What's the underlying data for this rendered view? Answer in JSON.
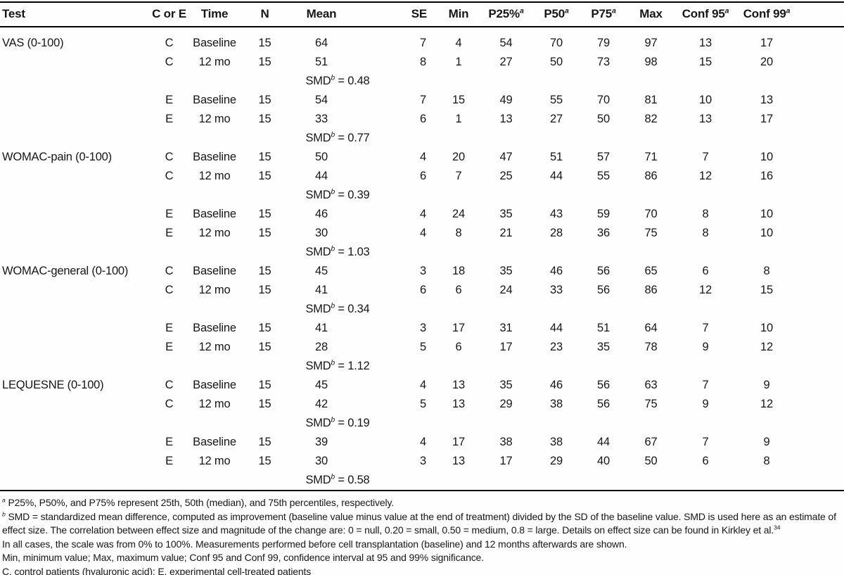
{
  "table": {
    "columns": [
      {
        "key": "test",
        "label": "Test"
      },
      {
        "key": "c_or_e",
        "label": "C or E"
      },
      {
        "key": "time",
        "label": "Time"
      },
      {
        "key": "n",
        "label": "N"
      },
      {
        "key": "mean",
        "label": "Mean"
      },
      {
        "key": "se",
        "label": "SE"
      },
      {
        "key": "min",
        "label": "Min"
      },
      {
        "key": "p25",
        "label": "P25%",
        "sup": "a"
      },
      {
        "key": "p50",
        "label": "P50",
        "sup": "a"
      },
      {
        "key": "p75",
        "label": "P75",
        "sup": "a"
      },
      {
        "key": "max",
        "label": "Max"
      },
      {
        "key": "conf95",
        "label": "Conf 95",
        "sup": "a"
      },
      {
        "key": "conf99",
        "label": "Conf 99",
        "sup": "a"
      }
    ],
    "smd_label": "SMD",
    "smd_sup": "b",
    "smd_equals": " = ",
    "groups": [
      {
        "test": "VAS (0-100)",
        "blocks": [
          {
            "rows": [
              {
                "arm": "C",
                "time": "Baseline",
                "values": [
                  "15",
                  "64",
                  "7",
                  "4",
                  "54",
                  "70",
                  "79",
                  "97",
                  "13",
                  "17"
                ]
              },
              {
                "arm": "C",
                "time": "12 mo",
                "values": [
                  "15",
                  "51",
                  "8",
                  "1",
                  "27",
                  "50",
                  "73",
                  "98",
                  "15",
                  "20"
                ]
              }
            ],
            "smd": "0.48"
          },
          {
            "rows": [
              {
                "arm": "E",
                "time": "Baseline",
                "values": [
                  "15",
                  "54",
                  "7",
                  "15",
                  "49",
                  "55",
                  "70",
                  "81",
                  "10",
                  "13"
                ]
              },
              {
                "arm": "E",
                "time": "12 mo",
                "values": [
                  "15",
                  "33",
                  "6",
                  "1",
                  "13",
                  "27",
                  "50",
                  "82",
                  "13",
                  "17"
                ]
              }
            ],
            "smd": "0.77"
          }
        ]
      },
      {
        "test": "WOMAC-pain (0-100)",
        "blocks": [
          {
            "rows": [
              {
                "arm": "C",
                "time": "Baseline",
                "values": [
                  "15",
                  "50",
                  "4",
                  "20",
                  "47",
                  "51",
                  "57",
                  "71",
                  "7",
                  "10"
                ]
              },
              {
                "arm": "C",
                "time": "12 mo",
                "values": [
                  "15",
                  "44",
                  "6",
                  "7",
                  "25",
                  "44",
                  "55",
                  "86",
                  "12",
                  "16"
                ]
              }
            ],
            "smd": "0.39"
          },
          {
            "rows": [
              {
                "arm": "E",
                "time": "Baseline",
                "values": [
                  "15",
                  "46",
                  "4",
                  "24",
                  "35",
                  "43",
                  "59",
                  "70",
                  "8",
                  "10"
                ]
              },
              {
                "arm": "E",
                "time": "12 mo",
                "values": [
                  "15",
                  "30",
                  "4",
                  "8",
                  "21",
                  "28",
                  "36",
                  "75",
                  "8",
                  "10"
                ]
              }
            ],
            "smd": "1.03"
          }
        ]
      },
      {
        "test": "WOMAC-general (0-100)",
        "blocks": [
          {
            "rows": [
              {
                "arm": "C",
                "time": "Baseline",
                "values": [
                  "15",
                  "45",
                  "3",
                  "18",
                  "35",
                  "46",
                  "56",
                  "65",
                  "6",
                  "8"
                ]
              },
              {
                "arm": "C",
                "time": "12 mo",
                "values": [
                  "15",
                  "41",
                  "6",
                  "6",
                  "24",
                  "33",
                  "56",
                  "86",
                  "12",
                  "15"
                ]
              }
            ],
            "smd": "0.34"
          },
          {
            "rows": [
              {
                "arm": "E",
                "time": "Baseline",
                "values": [
                  "15",
                  "41",
                  "3",
                  "17",
                  "31",
                  "44",
                  "51",
                  "64",
                  "7",
                  "10"
                ]
              },
              {
                "arm": "E",
                "time": "12 mo",
                "values": [
                  "15",
                  "28",
                  "5",
                  "6",
                  "17",
                  "23",
                  "35",
                  "78",
                  "9",
                  "12"
                ]
              }
            ],
            "smd": "1.12"
          }
        ]
      },
      {
        "test": "LEQUESNE (0-100)",
        "blocks": [
          {
            "rows": [
              {
                "arm": "C",
                "time": "Baseline",
                "values": [
                  "15",
                  "45",
                  "4",
                  "13",
                  "35",
                  "46",
                  "56",
                  "63",
                  "7",
                  "9"
                ]
              },
              {
                "arm": "C",
                "time": "12 mo",
                "values": [
                  "15",
                  "42",
                  "5",
                  "13",
                  "29",
                  "38",
                  "56",
                  "75",
                  "9",
                  "12"
                ]
              }
            ],
            "smd": "0.19"
          },
          {
            "rows": [
              {
                "arm": "E",
                "time": "Baseline",
                "values": [
                  "15",
                  "39",
                  "4",
                  "17",
                  "38",
                  "38",
                  "44",
                  "67",
                  "7",
                  "9"
                ]
              },
              {
                "arm": "E",
                "time": "12 mo",
                "values": [
                  "15",
                  "30",
                  "3",
                  "13",
                  "17",
                  "29",
                  "40",
                  "50",
                  "6",
                  "8"
                ]
              }
            ],
            "smd": "0.58"
          }
        ]
      }
    ]
  },
  "footnotes": [
    {
      "sup": "a",
      "text": "P25%, P50%, and P75% represent 25th, 50th (median), and 75th percentiles, respectively."
    },
    {
      "sup": "b",
      "text": "SMD = standardized mean difference, computed as improvement (baseline value minus value at the end of treatment) divided by the SD of the baseline value. SMD is used here as an estimate of effect size. The correlation between effect size and magnitude of the change are: 0 = null, 0.20 = small, 0.50 = medium, 0.8 = large. Details on effect size can be found in Kirkley et al.",
      "end_sup": "34"
    },
    {
      "text": "In all cases, the scale was from 0% to 100%. Measurements performed before cell transplantation (baseline) and 12 months afterwards are shown."
    },
    {
      "text": "Min, minimum value; Max, maximum value; Conf 95 and Conf 99, confidence interval at 95 and 99% significance."
    },
    {
      "text": "C, control patients (hyaluronic acid); E, experimental cell-treated patients"
    }
  ]
}
